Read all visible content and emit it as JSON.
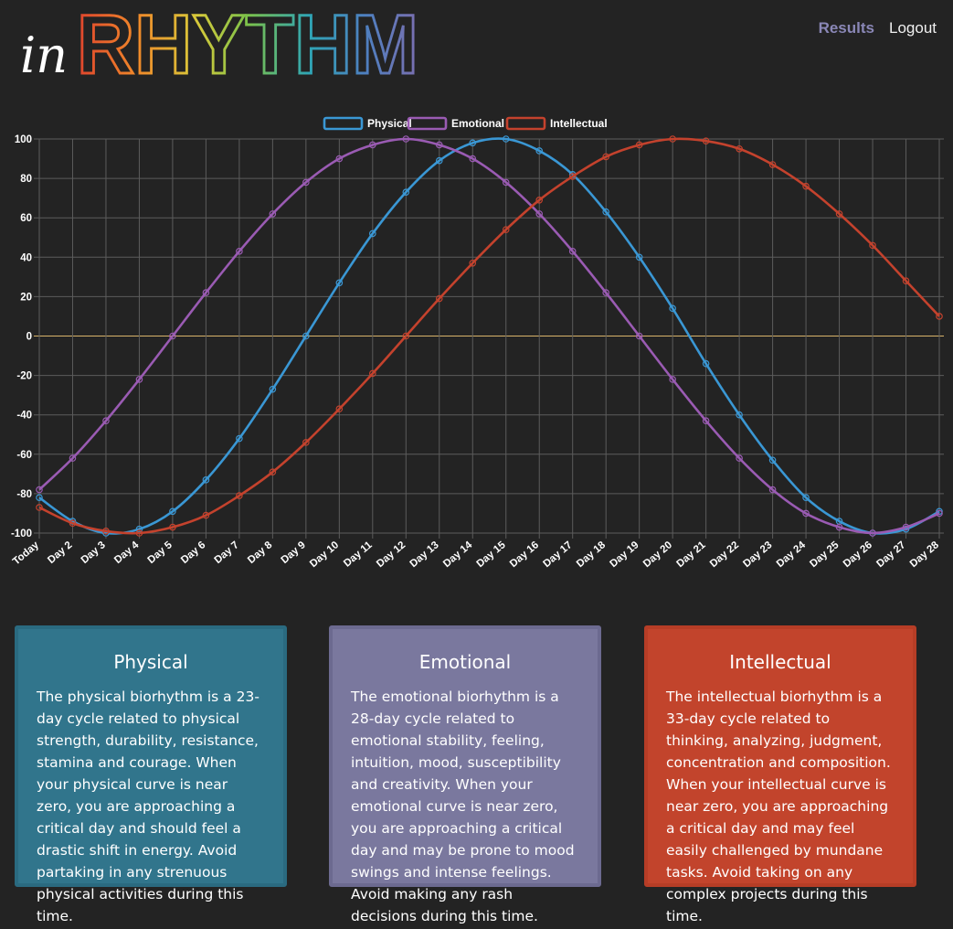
{
  "header": {
    "logo_in": "in",
    "logo_word": "RHYTHM",
    "nav": {
      "results": "Results",
      "logout": "Logout"
    }
  },
  "colors": {
    "physical": "#3a97d4",
    "emotional": "#9a5bb3",
    "intellectual": "#c4422d",
    "zero_line": "#d8b36a"
  },
  "chart_data": {
    "type": "line",
    "categories": [
      "Today",
      "Day 2",
      "Day 3",
      "Day 4",
      "Day 5",
      "Day 6",
      "Day 7",
      "Day 8",
      "Day 9",
      "Day 10",
      "Day 11",
      "Day 12",
      "Day 13",
      "Day 14",
      "Day 15",
      "Day 16",
      "Day 17",
      "Day 18",
      "Day 19",
      "Day 20",
      "Day 21",
      "Day 22",
      "Day 23",
      "Day 24",
      "Day 25",
      "Day 26",
      "Day 27",
      "Day 28"
    ],
    "ylim": [
      -100,
      100
    ],
    "yticks": [
      100,
      80,
      60,
      40,
      20,
      0,
      -20,
      -40,
      -60,
      -80,
      -100
    ],
    "grid": true,
    "legend_position": "top-center",
    "series": [
      {
        "name": "Physical",
        "color": "#3a97d4",
        "values": [
          -82,
          -94,
          -100,
          -98,
          -89,
          -73,
          -52,
          -27,
          0,
          27,
          52,
          73,
          89,
          98,
          100,
          94,
          82,
          63,
          40,
          14,
          -14,
          -40,
          -63,
          -82,
          -94,
          -100,
          -98,
          -89
        ]
      },
      {
        "name": "Emotional",
        "color": "#9a5bb3",
        "values": [
          -78,
          -62,
          -43,
          -22,
          0,
          22,
          43,
          62,
          78,
          90,
          97,
          100,
          97,
          90,
          78,
          62,
          43,
          22,
          0,
          -22,
          -43,
          -62,
          -78,
          -90,
          -97,
          -100,
          -97,
          -90
        ]
      },
      {
        "name": "Intellectual",
        "color": "#c4422d",
        "values": [
          -87,
          -95,
          -99,
          -100,
          -97,
          -91,
          -81,
          -69,
          -54,
          -37,
          -19,
          0,
          19,
          37,
          54,
          69,
          81,
          91,
          97,
          100,
          99,
          95,
          87,
          76,
          62,
          46,
          28,
          10
        ]
      }
    ]
  },
  "cards": [
    {
      "title": "Physical",
      "text": "The physical biorhythm is a 23-day cycle related to physical strength, durability, resistance, stamina and courage. When your physical curve is near zero, you are approaching a critical day and should feel a drastic shift in energy. Avoid partaking in any strenuous physical activities during this time."
    },
    {
      "title": "Emotional",
      "text": "The emotional biorhythm is a 28-day cycle related to emotional stability, feeling, intuition, mood, susceptibility and creativity. When your emotional curve is near zero, you are approaching a critical day and may be prone to mood swings and intense feelings. Avoid making any rash decisions during this time."
    },
    {
      "title": "Intellectual",
      "text": "The intellectual biorhythm is a 33-day cycle related to thinking, analyzing, judgment, concentration and composition. When your intellectual curve is near zero, you are approaching a critical day and may feel easily challenged by mundane tasks. Avoid taking on any complex projects during this time."
    }
  ]
}
